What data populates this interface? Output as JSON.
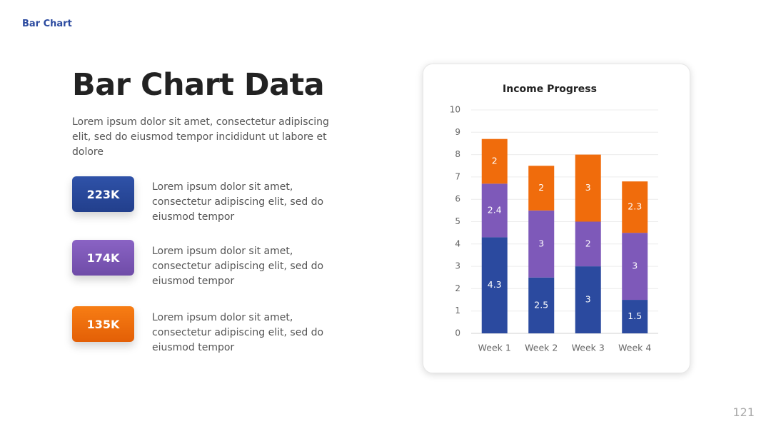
{
  "header": "Bar Chart",
  "title": "Bar Chart Data",
  "intro": "Lorem ipsum dolor sit amet, consectetur adipiscing elit, sed do eiusmod tempor incididunt ut labore et dolore",
  "stats": [
    {
      "value": "223K",
      "text": "Lorem ipsum dolor sit amet, consectetur adipiscing elit, sed do eiusmod tempor"
    },
    {
      "value": "174K",
      "text": "Lorem ipsum dolor sit amet, consectetur adipiscing elit, sed do eiusmod tempor"
    },
    {
      "value": "135K",
      "text": "Lorem ipsum dolor sit amet, consectetur adipiscing elit, sed do eiusmod tempor"
    }
  ],
  "page_number": "121",
  "chart_data": {
    "type": "bar",
    "stacked": true,
    "title": "Income Progress",
    "categories": [
      "Week 1",
      "Week 2",
      "Week 3",
      "Week 4"
    ],
    "series": [
      {
        "color": "#2b4a9f",
        "values": [
          4.3,
          2.5,
          3,
          1.5
        ]
      },
      {
        "color": "#7e59b9",
        "values": [
          2.4,
          3,
          2,
          3
        ]
      },
      {
        "color": "#f06c0c",
        "values": [
          2,
          2,
          3,
          2.3
        ]
      }
    ],
    "ylim": [
      0,
      10
    ],
    "yticks": [
      0,
      1,
      2,
      3,
      4,
      5,
      6,
      7,
      8,
      9,
      10
    ],
    "grid": true
  }
}
